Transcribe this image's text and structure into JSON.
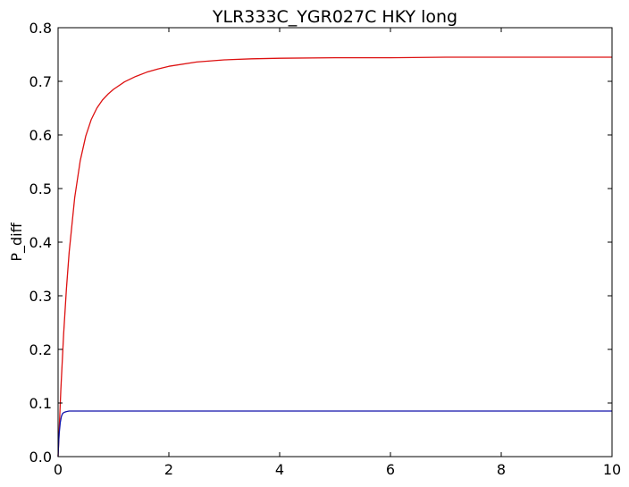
{
  "chart_data": {
    "type": "line",
    "title": "YLR333C_YGR027C HKY long",
    "xlabel": "",
    "ylabel": "P_diff",
    "xlim": [
      0,
      10
    ],
    "ylim": [
      0,
      0.8
    ],
    "xticks": [
      0,
      2,
      4,
      6,
      8,
      10
    ],
    "xtick_labels": [
      "0",
      "2",
      "4",
      "6",
      "8",
      "10"
    ],
    "yticks": [
      0,
      0.1,
      0.2,
      0.3,
      0.4,
      0.5,
      0.6,
      0.7,
      0.8
    ],
    "ytick_labels": [
      "0.0",
      "0.1",
      "0.2",
      "0.3",
      "0.4",
      "0.5",
      "0.6",
      "0.7",
      "0.8"
    ],
    "grid": false,
    "series": [
      {
        "color": "#dd1111",
        "x": [
          0,
          0.05,
          0.1,
          0.15,
          0.2,
          0.3,
          0.4,
          0.5,
          0.6,
          0.7,
          0.8,
          0.9,
          1.0,
          1.2,
          1.4,
          1.6,
          1.8,
          2.0,
          2.5,
          3.0,
          3.5,
          4.0,
          5.0,
          6.0,
          7.0,
          8.0,
          9.0,
          10.0
        ],
        "y": [
          0.0,
          0.125,
          0.228,
          0.312,
          0.381,
          0.483,
          0.552,
          0.598,
          0.629,
          0.65,
          0.665,
          0.676,
          0.685,
          0.699,
          0.709,
          0.717,
          0.723,
          0.728,
          0.736,
          0.74,
          0.742,
          0.743,
          0.744,
          0.744,
          0.745,
          0.745,
          0.745,
          0.745
        ]
      },
      {
        "color": "#1111aa",
        "x": [
          0,
          0.01,
          0.02,
          0.04,
          0.06,
          0.08,
          0.1,
          0.12,
          0.15,
          0.2,
          0.25,
          0.3,
          0.5,
          1,
          2,
          4,
          6,
          8,
          10
        ],
        "y": [
          0.0,
          0.025,
          0.043,
          0.064,
          0.075,
          0.08,
          0.082,
          0.083,
          0.084,
          0.085,
          0.085,
          0.085,
          0.085,
          0.085,
          0.085,
          0.085,
          0.085,
          0.085,
          0.085
        ]
      }
    ]
  }
}
